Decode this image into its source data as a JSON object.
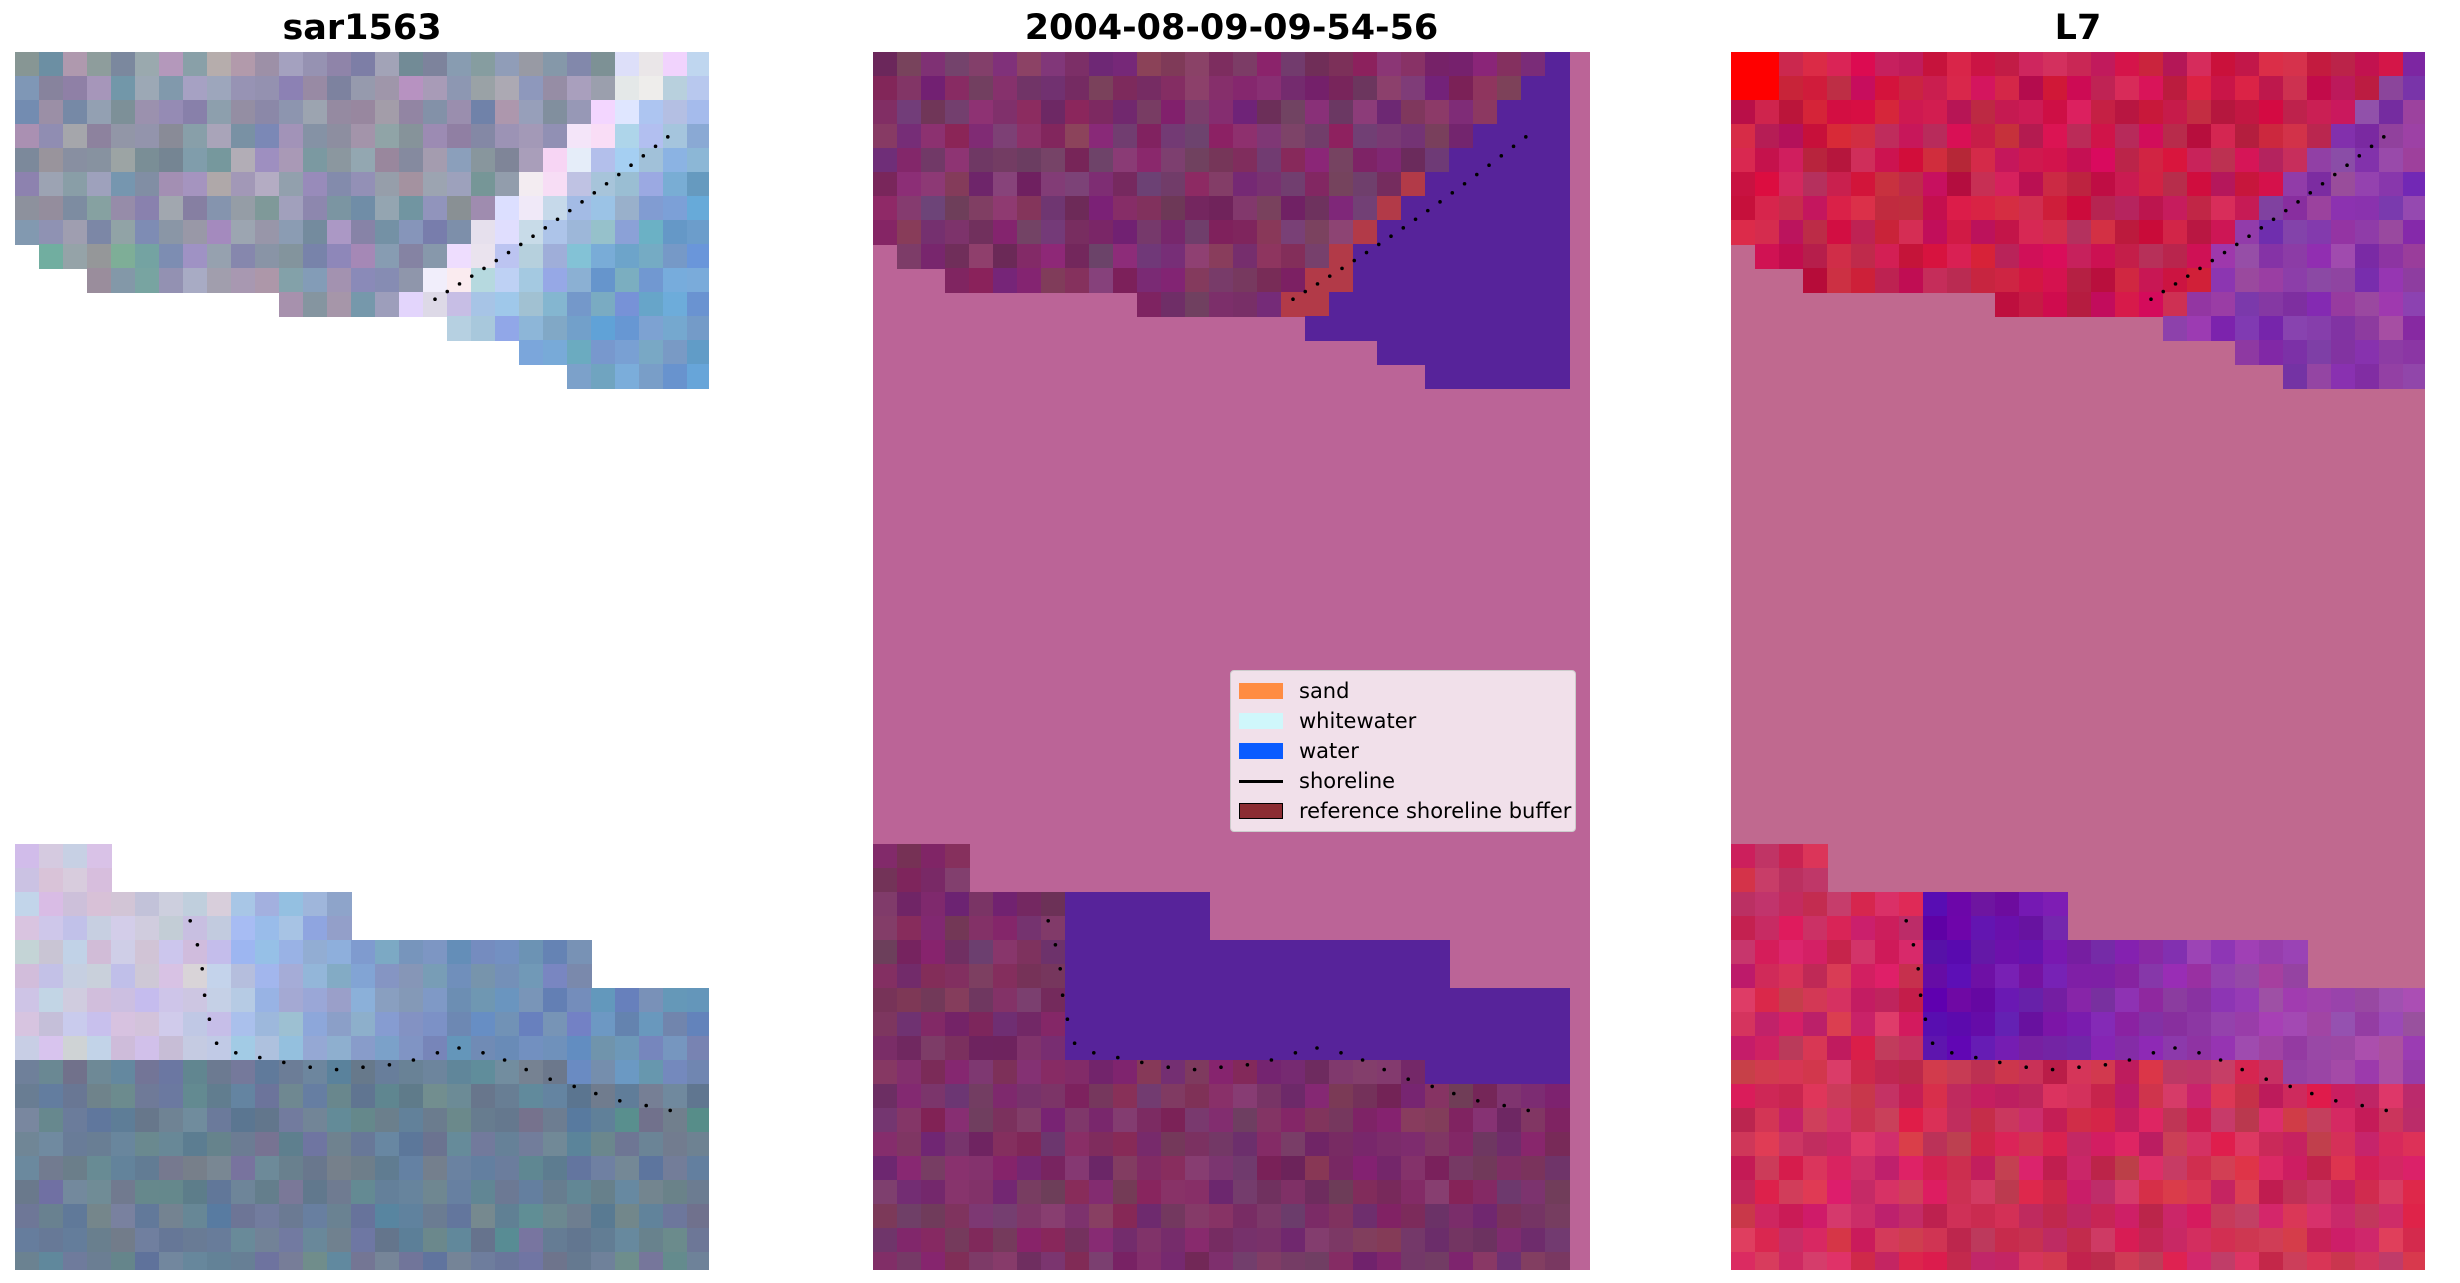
{
  "panels": [
    {
      "title": "sar1563",
      "kind": "rgb"
    },
    {
      "title": "2004-08-09-09-54-56",
      "kind": "classification"
    },
    {
      "title": "L7",
      "kind": "ndwi"
    }
  ],
  "legend": {
    "items": [
      {
        "label": "sand",
        "color": "#ff8c42"
      },
      {
        "label": "whitewater",
        "color": "#cff7fb"
      },
      {
        "label": "water",
        "color": "#0a5cff"
      },
      {
        "label": "shoreline",
        "color": "#000000"
      },
      {
        "label": "reference shoreline buffer",
        "color": "#8b2c32"
      }
    ]
  },
  "colors": {
    "no_data_classification": "#bb6497",
    "no_data_ndwi": "#c0698f",
    "water_class": "#57239a",
    "buffer": "#b23a48",
    "land_dark": "#7a3365"
  }
}
